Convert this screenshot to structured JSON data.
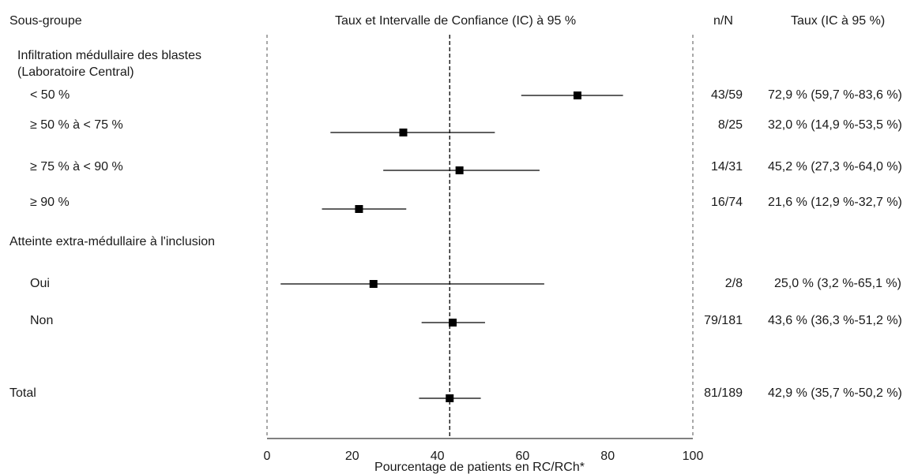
{
  "headers": {
    "subgroup": "Sous-groupe",
    "plot": "Taux et Intervalle de Confiance (IC) à 95 %",
    "nN": "n/N",
    "rate": "Taux (IC à 95 %)"
  },
  "group_labels": {
    "marrow_line1": "Infiltration médullaire des blastes",
    "marrow_line2": "(Laboratoire Central)",
    "extramedullary": "Atteinte extra-médullaire à l'inclusion"
  },
  "rows": [
    {
      "label": "< 50 %",
      "nN": "43/59",
      "rate_text": "72,9 % (59,7 %-83,6 %)"
    },
    {
      "label": "≥ 50 % à < 75 %",
      "nN": "8/25",
      "rate_text": "32,0 % (14,9 %-53,5 %)"
    },
    {
      "label": "≥ 75 % à < 90 %",
      "nN": "14/31",
      "rate_text": "45,2 % (27,3 %-64,0 %)"
    },
    {
      "label": "≥ 90 %",
      "nN": "16/74",
      "rate_text": "21,6 % (12,9 %-32,7 %)"
    },
    {
      "label": "Oui",
      "nN": "2/8",
      "rate_text": "25,0 % (3,2 %-65,1 %)"
    },
    {
      "label": "Non",
      "nN": "79/181",
      "rate_text": "43,6 % (36,3 %-51,2 %)"
    },
    {
      "label": "Total",
      "nN": "81/189",
      "rate_text": "42,9 % (35,7 %-50,2 %)"
    }
  ],
  "chart_data": {
    "type": "forest",
    "title": "Taux et Intervalle de Confiance (IC) à 95 %",
    "xlabel": "Pourcentage de patients en RC/RCh*",
    "xlim": [
      0,
      100
    ],
    "xticks": [
      "0",
      "20",
      "40",
      "60",
      "80",
      "100"
    ],
    "reference_line": 42.9,
    "points": [
      {
        "label": "< 50 %",
        "estimate": 72.9,
        "lower": 59.7,
        "upper": 83.6
      },
      {
        "label": "≥ 50 % à < 75 %",
        "estimate": 32.0,
        "lower": 14.9,
        "upper": 53.5
      },
      {
        "label": "≥ 75 % à < 90 %",
        "estimate": 45.2,
        "lower": 27.3,
        "upper": 64.0
      },
      {
        "label": "≥ 90 %",
        "estimate": 21.6,
        "lower": 12.9,
        "upper": 32.7
      },
      {
        "label": "Oui",
        "estimate": 25.0,
        "lower": 3.2,
        "upper": 65.1
      },
      {
        "label": "Non",
        "estimate": 43.6,
        "lower": 36.3,
        "upper": 51.2
      },
      {
        "label": "Total",
        "estimate": 42.9,
        "lower": 35.7,
        "upper": 50.2
      }
    ]
  }
}
